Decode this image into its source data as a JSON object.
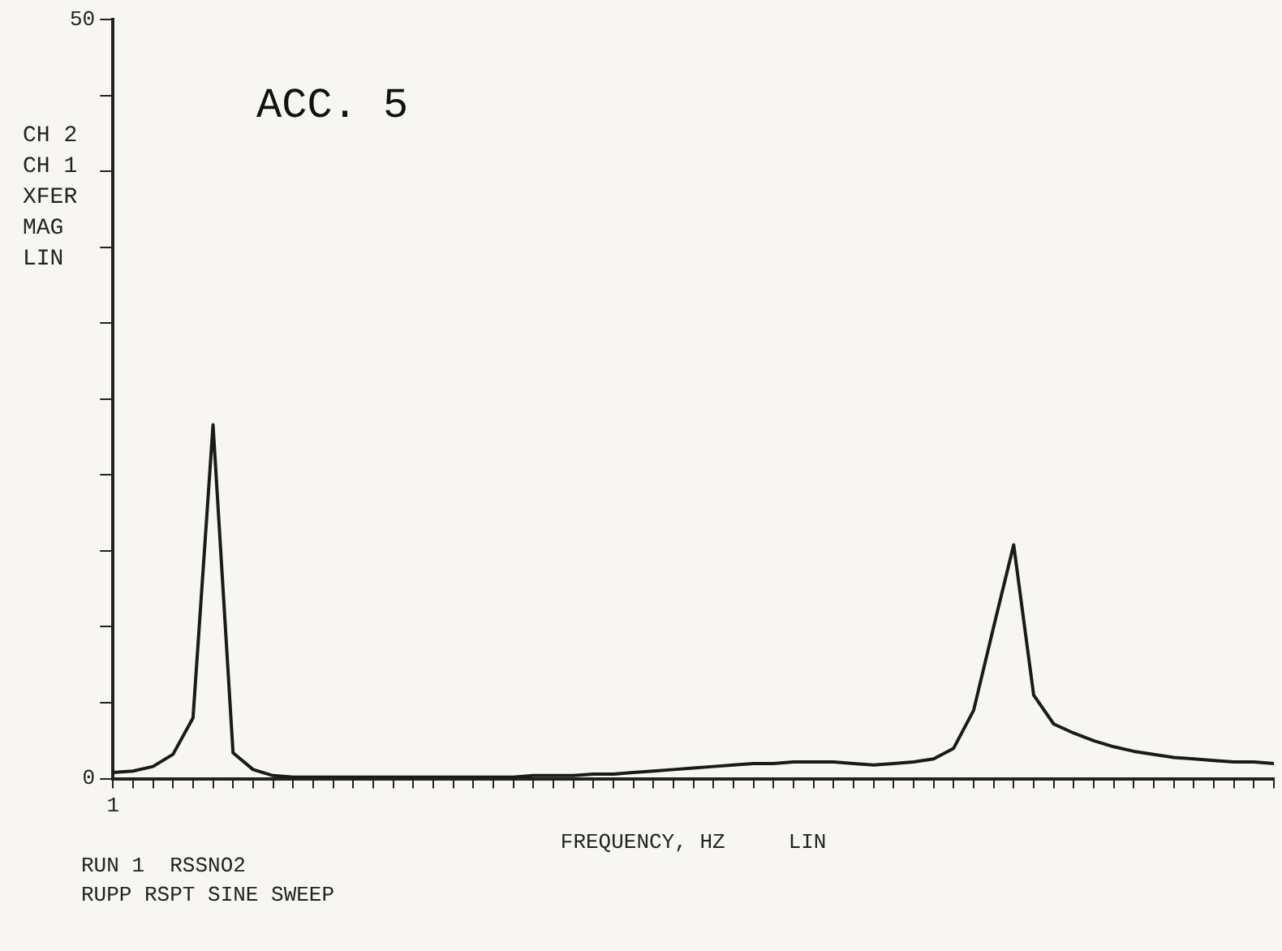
{
  "chart_data": {
    "type": "line",
    "xlabel": "FREQUENCY, HZ     LIN",
    "ylabel": "CH 2\nCH 1\nXFER\nMAG\nLIN",
    "annotations": [
      "ACC. 5",
      "RUN 1  RSSNO2",
      "RUPP RSPT SINE SWEEP"
    ],
    "categories": [
      "1",
      null,
      null,
      null,
      null,
      null,
      null,
      null,
      null,
      null,
      null,
      null,
      null,
      null,
      null,
      null,
      null,
      null,
      null,
      null,
      null,
      null,
      null,
      null,
      null,
      null,
      null,
      null,
      null,
      null,
      null,
      null,
      null,
      null,
      null,
      null,
      null,
      null,
      null,
      null,
      null,
      null,
      null,
      null,
      null,
      null,
      null,
      null,
      null,
      null,
      null,
      null,
      null,
      null,
      null,
      null,
      null,
      null,
      null
    ],
    "series": [
      {
        "color": "#1a1a1a",
        "values": [
          0.4,
          0.5,
          0.8,
          1.6,
          4.0,
          23.3,
          1.7,
          0.6,
          0.2,
          0.1,
          0.1,
          0.1,
          0.1,
          0.1,
          0.1,
          0.1,
          0.1,
          0.1,
          0.1,
          0.1,
          0.1,
          0.2,
          0.2,
          0.2,
          0.3,
          0.3,
          0.4,
          0.5,
          0.6,
          0.7,
          0.8,
          0.9,
          1.0,
          1.0,
          1.1,
          1.1,
          1.1,
          1.0,
          0.9,
          1.0,
          1.1,
          1.3,
          2.0,
          4.5,
          10.0,
          15.4,
          5.5,
          3.6,
          3.0,
          2.5,
          2.1,
          1.8,
          1.6,
          1.4,
          1.3,
          1.2,
          1.1,
          1.1,
          1.0
        ]
      }
    ],
    "ylim": [
      0,
      50
    ],
    "yticks": [
      0,
      {
        "value": 5,
        "label": null
      },
      {
        "value": 10,
        "label": null
      },
      {
        "value": 15,
        "label": null
      },
      {
        "value": 20,
        "label": null
      },
      {
        "value": 25,
        "label": null
      },
      {
        "value": 30,
        "label": null
      },
      {
        "value": 35,
        "label": null
      },
      {
        "value": 40,
        "label": null
      },
      {
        "value": 45,
        "label": null
      },
      50
    ],
    "grid": false,
    "legend": false,
    "marker": "none",
    "line_style": "solid"
  }
}
